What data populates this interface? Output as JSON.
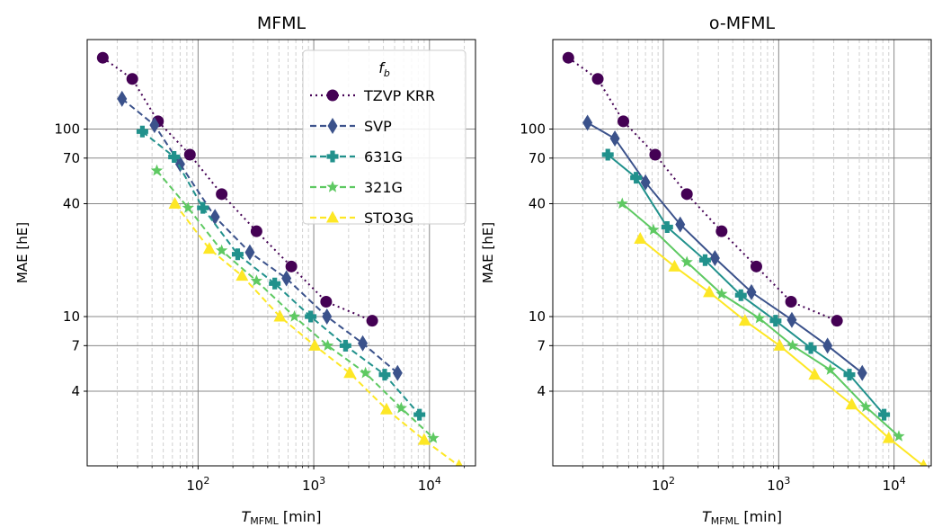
{
  "chart_data": [
    {
      "type": "line",
      "title": "MFML",
      "xlabel_base": "T",
      "xlabel_sub": "MFML",
      "xlabel_unit": " [min]",
      "ylabel": "MAE [hE]",
      "x_scale": "log",
      "y_scale": "log",
      "xlim": [
        11,
        25000
      ],
      "ylim": [
        1.6,
        300
      ],
      "xticks": [
        100,
        1000,
        10000
      ],
      "xtick_labels": [
        {
          "base": "10",
          "exp": "2"
        },
        {
          "base": "10",
          "exp": "3"
        },
        {
          "base": "10",
          "exp": "4"
        }
      ],
      "yticks": [
        4,
        7,
        10,
        40,
        70,
        100
      ],
      "ytick_labels": [
        "4",
        "7",
        "10",
        "40",
        "70",
        "100"
      ],
      "grid": "major solid, minor dashed",
      "legend": {
        "placement": "upper-right",
        "title_base": "f",
        "title_sub": "b"
      },
      "series": [
        {
          "name": "TZVP KRR",
          "color": "#440154",
          "linestyle": "dotted",
          "marker": "circle",
          "x": [
            15,
            27,
            45,
            85,
            160,
            320,
            640,
            1280,
            3200
          ],
          "y": [
            240,
            185,
            110,
            73,
            45,
            28.5,
            18.5,
            12,
            9.5
          ]
        },
        {
          "name": "SVP",
          "color": "#3b528b",
          "linestyle": "dashed",
          "marker": "diamond",
          "x": [
            22,
            42,
            70,
            140,
            280,
            580,
            1300,
            2650,
            5300
          ],
          "y": [
            145,
            105,
            65,
            34,
            22,
            16,
            10,
            7.2,
            5
          ]
        },
        {
          "name": "631G",
          "color": "#21918c",
          "linestyle": "dashed",
          "marker": "plus",
          "x": [
            33,
            62,
            110,
            220,
            460,
            940,
            1880,
            4100,
            8200
          ],
          "y": [
            97,
            71,
            38,
            21.5,
            15,
            10,
            7,
            4.9,
            3
          ]
        },
        {
          "name": "321G",
          "color": "#5ec962",
          "linestyle": "dashed",
          "marker": "star",
          "x": [
            44,
            82,
            160,
            320,
            680,
            1320,
            2800,
            5700,
            10800
          ],
          "y": [
            60,
            38,
            22.5,
            15.5,
            10,
            7,
            5,
            3.25,
            2.25
          ]
        },
        {
          "name": "STO3G",
          "color": "#fde725",
          "linestyle": "dashed",
          "marker": "triangle",
          "x": [
            63,
            125,
            240,
            510,
            1020,
            2050,
            4250,
            9000,
            18000
          ],
          "y": [
            40,
            23,
            16.5,
            10,
            7,
            5,
            3.2,
            2.2,
            1.6
          ]
        }
      ]
    },
    {
      "type": "line",
      "title": "o-MFML",
      "xlabel_base": "T",
      "xlabel_sub": "MFML",
      "xlabel_unit": " [min]",
      "ylabel": "MAE [hE]",
      "x_scale": "log",
      "y_scale": "log",
      "xlim": [
        11,
        21000
      ],
      "ylim": [
        1.6,
        300
      ],
      "xticks": [
        100,
        1000,
        10000
      ],
      "xtick_labels": [
        {
          "base": "10",
          "exp": "2"
        },
        {
          "base": "10",
          "exp": "3"
        },
        {
          "base": "10",
          "exp": "4"
        }
      ],
      "yticks": [
        4,
        7,
        10,
        40,
        70,
        100
      ],
      "ytick_labels": [
        "4",
        "7",
        "10",
        "40",
        "70",
        "100"
      ],
      "grid": "major solid, minor dashed",
      "series": [
        {
          "name": "TZVP KRR",
          "color": "#440154",
          "linestyle": "dotted",
          "marker": "circle",
          "x": [
            15,
            27,
            45,
            85,
            160,
            320,
            640,
            1280,
            3200
          ],
          "y": [
            240,
            185,
            110,
            73,
            45,
            28.5,
            18.5,
            12,
            9.5
          ]
        },
        {
          "name": "SVP",
          "color": "#3b528b",
          "linestyle": "solid",
          "marker": "diamond",
          "x": [
            22,
            38,
            70,
            140,
            280,
            580,
            1300,
            2650,
            5300
          ],
          "y": [
            108,
            89,
            52,
            31,
            20.5,
            13.5,
            9.6,
            7,
            5
          ]
        },
        {
          "name": "631G",
          "color": "#21918c",
          "linestyle": "solid",
          "marker": "plus",
          "x": [
            33,
            58,
            108,
            230,
            470,
            940,
            1900,
            4100,
            8200
          ],
          "y": [
            73,
            55,
            30,
            20,
            13,
            9.5,
            6.8,
            4.9,
            3
          ]
        },
        {
          "name": "321G",
          "color": "#5ec962",
          "linestyle": "solid",
          "marker": "star",
          "x": [
            44,
            82,
            160,
            320,
            680,
            1320,
            2800,
            5700,
            11000
          ],
          "y": [
            40,
            29,
            19.5,
            13.2,
            9.8,
            7,
            5.2,
            3.3,
            2.3
          ]
        },
        {
          "name": "STO3G",
          "color": "#fde725",
          "linestyle": "solid",
          "marker": "triangle",
          "x": [
            63,
            125,
            250,
            510,
            1020,
            2050,
            4300,
            9000,
            18000
          ],
          "y": [
            26,
            18.5,
            13.5,
            9.5,
            7,
            4.9,
            3.4,
            2.25,
            1.6
          ]
        }
      ]
    }
  ]
}
